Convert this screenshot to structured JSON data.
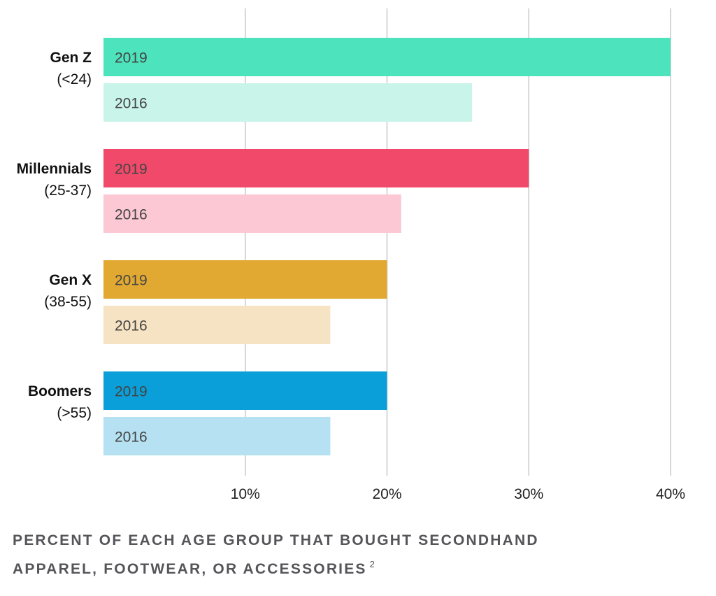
{
  "chart_data": {
    "type": "bar",
    "orientation": "horizontal",
    "categories": [
      {
        "name": "Gen Z",
        "sub": "(<24)"
      },
      {
        "name": "Millennials",
        "sub": "(25-37)"
      },
      {
        "name": "Gen X",
        "sub": "(38-55)"
      },
      {
        "name": "Boomers",
        "sub": "(>55)"
      }
    ],
    "series": [
      {
        "label": "2019",
        "values": [
          40,
          30,
          20,
          20
        ]
      },
      {
        "label": "2016",
        "values": [
          26,
          21,
          16,
          16
        ]
      }
    ],
    "colors": {
      "2019": [
        "#4de3bd",
        "#f0496a",
        "#e1a931",
        "#0a9fd8"
      ],
      "2016": [
        "#c8f4ea",
        "#fbc8d3",
        "#f6e3c3",
        "#b5e1f2"
      ]
    },
    "xlim": [
      0,
      40
    ],
    "xticks": [
      10,
      20,
      30,
      40
    ],
    "xtick_labels": [
      "10%",
      "20%",
      "30%",
      "40%"
    ],
    "grid": true
  },
  "caption": {
    "line1": "PERCENT OF EACH AGE GROUP THAT BOUGHT SECONDHAND",
    "line2": "APPAREL, FOOTWEAR, OR ACCESSORIES",
    "footnote": "2"
  }
}
